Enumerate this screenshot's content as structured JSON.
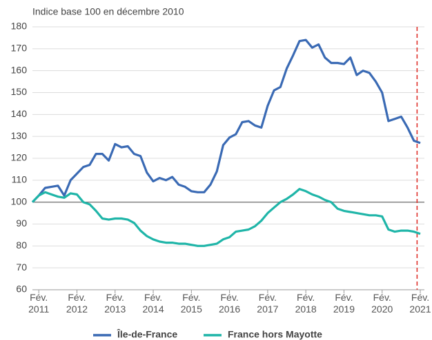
{
  "chart_data": {
    "type": "line",
    "subtitle": "Indice base 100 en décembre 2010",
    "categories": [
      null,
      "Fév. 2011",
      null,
      null,
      null,
      null,
      null,
      "Fév. 2012",
      null,
      null,
      null,
      null,
      null,
      "Fév. 2013",
      null,
      null,
      null,
      null,
      null,
      "Fév. 2014",
      null,
      null,
      null,
      null,
      null,
      "Fév. 2015",
      null,
      null,
      null,
      null,
      null,
      "Fév. 2016",
      null,
      null,
      null,
      null,
      null,
      "Fév. 2017",
      null,
      null,
      null,
      null,
      null,
      "Fév. 2018",
      null,
      null,
      null,
      null,
      null,
      "Fév. 2019",
      null,
      null,
      null,
      null,
      null,
      "Fév. 2020",
      null,
      null,
      null,
      null,
      null,
      "Fév. 2021"
    ],
    "series": [
      {
        "name": "Île-de-France",
        "color": "#3a6ab4",
        "values": [
          100,
          103,
          106.5,
          107,
          107.5,
          103,
          110,
          113,
          116,
          117,
          122,
          122,
          119,
          126.5,
          125,
          125.5,
          122,
          121,
          113.5,
          109.5,
          111,
          110,
          111.5,
          108,
          107,
          105,
          104.5,
          104.5,
          108,
          114,
          126,
          129.5,
          131,
          136.5,
          137,
          135,
          134,
          144,
          151,
          152.5,
          161,
          167,
          173.5,
          174,
          170.5,
          172,
          166,
          163.5,
          163.5,
          163,
          166,
          158,
          160,
          159,
          155,
          150,
          137,
          138,
          139,
          134,
          128,
          127
        ]
      },
      {
        "name": "France hors Mayotte",
        "color": "#1fb5a8",
        "values": [
          100,
          103,
          104.5,
          103.5,
          102.5,
          102,
          104,
          103.5,
          100,
          99,
          96,
          92.5,
          92,
          92.5,
          92.5,
          92,
          90.5,
          87,
          84.5,
          83,
          82,
          81.5,
          81.5,
          81,
          81,
          80.5,
          80,
          80,
          80.5,
          81,
          83,
          84,
          86.5,
          87,
          87.5,
          89,
          91.5,
          95,
          97.5,
          100,
          101.5,
          103.5,
          106,
          105,
          103.5,
          102.5,
          101,
          100,
          97,
          96,
          95.5,
          95,
          94.5,
          94,
          94,
          93.5,
          87.5,
          86.5,
          87,
          87,
          86.5,
          85.5
        ]
      }
    ],
    "ylim": [
      60,
      180
    ],
    "yticks": [
      60,
      70,
      80,
      90,
      100,
      110,
      120,
      130,
      140,
      150,
      160,
      170,
      180
    ],
    "grid": true,
    "hline": 100,
    "legend": "bottom"
  }
}
